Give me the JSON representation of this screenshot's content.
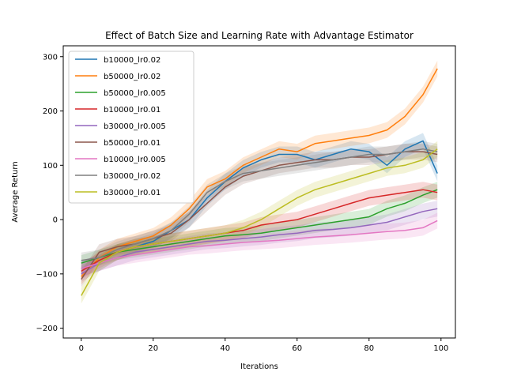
{
  "chart_data": {
    "type": "line",
    "title": "Effect of Batch Size and Learning Rate with Advantage Estimator",
    "xlabel": "Iterations",
    "ylabel": "Average Return",
    "xlim": [
      -5,
      104
    ],
    "ylim": [
      -218,
      320
    ],
    "xticks": [
      0,
      20,
      40,
      60,
      80,
      100
    ],
    "yticks": [
      -200,
      -100,
      0,
      100,
      200,
      300
    ],
    "grid": false,
    "legend_position": "top-left",
    "shaded_band": "variability band around each series",
    "series": [
      {
        "name": "b10000_lr0.02",
        "color": "#1f77b4",
        "x": [
          0,
          5,
          10,
          15,
          20,
          25,
          30,
          35,
          40,
          45,
          50,
          55,
          60,
          65,
          70,
          75,
          80,
          85,
          90,
          95,
          99
        ],
        "values": [
          -90,
          -80,
          -60,
          -50,
          -40,
          -20,
          0,
          40,
          70,
          95,
          110,
          120,
          120,
          110,
          120,
          130,
          125,
          100,
          130,
          145,
          85
        ]
      },
      {
        "name": "b50000_lr0.02",
        "color": "#ff7f0e",
        "x": [
          0,
          5,
          10,
          15,
          20,
          25,
          30,
          35,
          40,
          45,
          50,
          55,
          60,
          65,
          70,
          75,
          80,
          85,
          90,
          95,
          99
        ],
        "values": [
          -105,
          -70,
          -50,
          -40,
          -30,
          -10,
          20,
          60,
          75,
          100,
          115,
          130,
          125,
          140,
          145,
          150,
          155,
          165,
          190,
          230,
          278
        ]
      },
      {
        "name": "b50000_lr0.005",
        "color": "#2ca02c",
        "x": [
          0,
          5,
          10,
          15,
          20,
          25,
          30,
          35,
          40,
          45,
          50,
          55,
          60,
          65,
          70,
          75,
          80,
          85,
          90,
          95,
          99
        ],
        "values": [
          -80,
          -70,
          -60,
          -55,
          -50,
          -45,
          -40,
          -35,
          -30,
          -28,
          -25,
          -20,
          -15,
          -10,
          -5,
          0,
          5,
          20,
          30,
          45,
          55
        ]
      },
      {
        "name": "b10000_lr0.01",
        "color": "#d62728",
        "x": [
          0,
          5,
          10,
          15,
          20,
          25,
          30,
          35,
          40,
          45,
          50,
          55,
          60,
          65,
          70,
          75,
          80,
          85,
          90,
          95,
          99
        ],
        "values": [
          -95,
          -75,
          -60,
          -50,
          -45,
          -40,
          -35,
          -30,
          -25,
          -20,
          -10,
          -5,
          0,
          10,
          20,
          30,
          40,
          45,
          50,
          55,
          50
        ]
      },
      {
        "name": "b30000_lr0.005",
        "color": "#9467bd",
        "x": [
          0,
          5,
          10,
          15,
          20,
          25,
          30,
          35,
          40,
          45,
          50,
          55,
          60,
          65,
          70,
          75,
          80,
          85,
          90,
          95,
          99
        ],
        "values": [
          -100,
          -80,
          -70,
          -60,
          -55,
          -50,
          -45,
          -40,
          -38,
          -35,
          -32,
          -28,
          -25,
          -20,
          -18,
          -15,
          -10,
          -5,
          5,
          15,
          20
        ]
      },
      {
        "name": "b50000_lr0.01",
        "color": "#8c564b",
        "x": [
          0,
          5,
          10,
          15,
          20,
          25,
          30,
          35,
          40,
          45,
          50,
          55,
          60,
          65,
          70,
          75,
          80,
          85,
          90,
          95,
          99
        ],
        "values": [
          -110,
          -60,
          -50,
          -45,
          -35,
          -25,
          0,
          30,
          60,
          80,
          90,
          100,
          105,
          110,
          110,
          115,
          115,
          120,
          125,
          125,
          120
        ]
      },
      {
        "name": "b10000_lr0.005",
        "color": "#e377c2",
        "x": [
          0,
          5,
          10,
          15,
          20,
          25,
          30,
          35,
          40,
          45,
          50,
          55,
          60,
          65,
          70,
          75,
          80,
          85,
          90,
          95,
          99
        ],
        "values": [
          -90,
          -80,
          -70,
          -65,
          -60,
          -55,
          -50,
          -48,
          -45,
          -42,
          -40,
          -38,
          -35,
          -32,
          -30,
          -28,
          -25,
          -22,
          -20,
          -15,
          -2
        ]
      },
      {
        "name": "b30000_lr0.02",
        "color": "#7f7f7f",
        "x": [
          0,
          5,
          10,
          15,
          20,
          25,
          30,
          35,
          40,
          45,
          50,
          55,
          60,
          65,
          70,
          75,
          80,
          85,
          90,
          95,
          99
        ],
        "values": [
          -75,
          -70,
          -55,
          -45,
          -35,
          -20,
          10,
          50,
          70,
          85,
          90,
          95,
          100,
          105,
          110,
          115,
          120,
          120,
          125,
          130,
          125
        ]
      },
      {
        "name": "b30000_lr0.01",
        "color": "#bcbd22",
        "x": [
          0,
          5,
          10,
          15,
          20,
          25,
          30,
          35,
          40,
          45,
          50,
          55,
          60,
          65,
          70,
          75,
          80,
          85,
          90,
          95,
          99
        ],
        "values": [
          -140,
          -80,
          -60,
          -50,
          -45,
          -40,
          -35,
          -30,
          -25,
          -15,
          0,
          20,
          40,
          55,
          65,
          75,
          85,
          95,
          100,
          110,
          130
        ]
      }
    ]
  }
}
